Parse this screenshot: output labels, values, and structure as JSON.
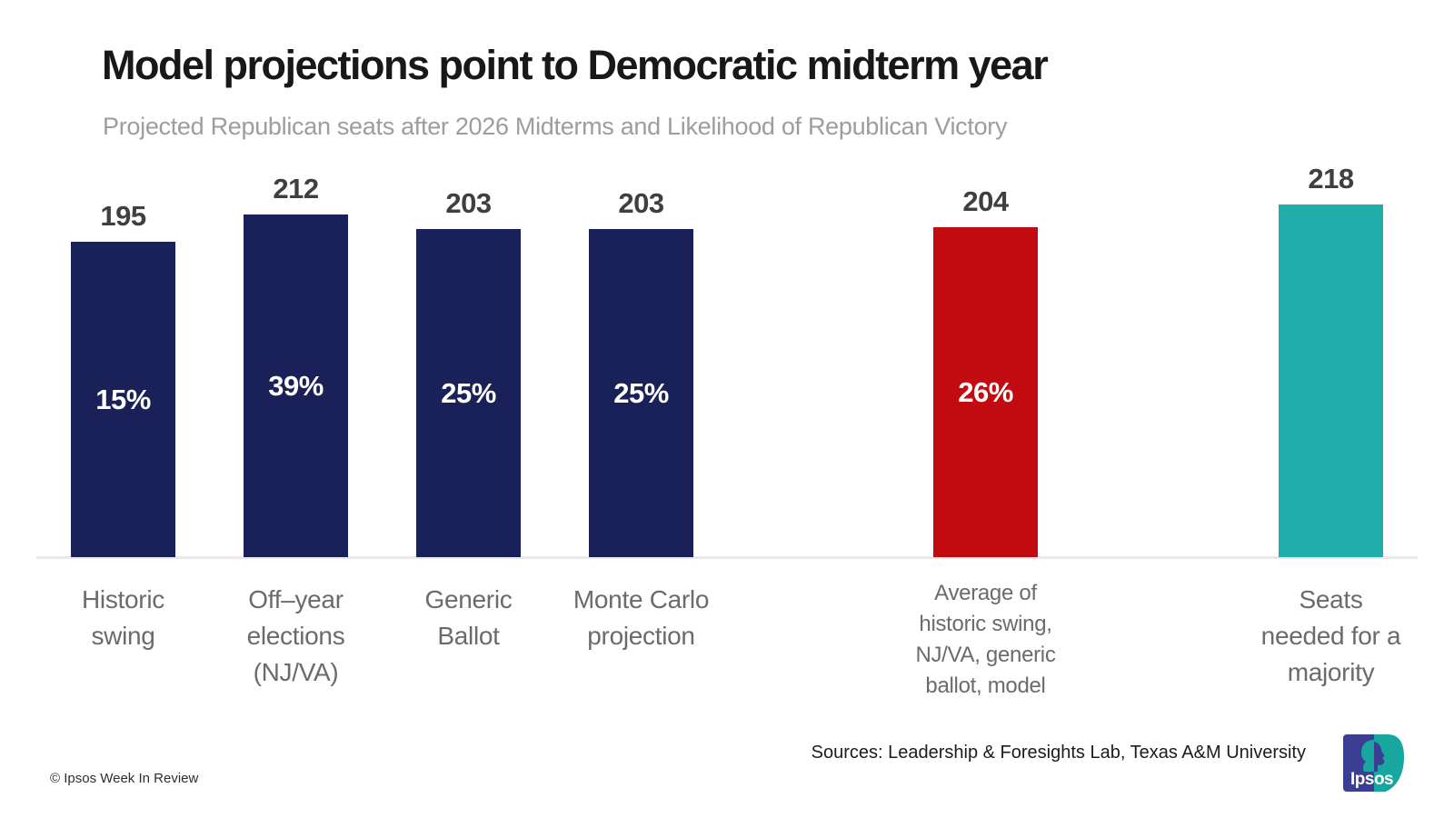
{
  "header": {
    "title": "Model projections point to Democratic midterm year",
    "subtitle": "Projected Republican seats after 2026 Midterms and Likelihood of Republican Victory"
  },
  "chart_data": {
    "type": "bar",
    "title": "Model projections point to Democratic midterm year",
    "subtitle": "Projected Republican seats after 2026 Midterms and Likelihood of Republican Victory",
    "value_meaning": "Projected Republican seats after 2026 Midterms",
    "inner_label_meaning": "Likelihood of Republican Victory",
    "ylim": [
      0,
      243
    ],
    "grid": false,
    "value_axis_visible": false,
    "bars": [
      {
        "category": "Historic swing",
        "category_lines": [
          "Historic",
          "swing"
        ],
        "value": 195,
        "likelihood_pct": "15%",
        "color": "#1a2158",
        "color_name": "navy",
        "label_style": "regular"
      },
      {
        "category": "Off-year elections (NJ/VA)",
        "category_lines": [
          "Off–year",
          "elections",
          "(NJ/VA)"
        ],
        "value": 212,
        "likelihood_pct": "39%",
        "color": "#1a2158",
        "color_name": "navy",
        "label_style": "regular"
      },
      {
        "category": "Generic Ballot",
        "category_lines": [
          "Generic",
          "Ballot"
        ],
        "value": 203,
        "likelihood_pct": "25%",
        "color": "#1a2158",
        "color_name": "navy",
        "label_style": "regular"
      },
      {
        "category": "Monte Carlo projection",
        "category_lines": [
          "Monte Carlo",
          "projection"
        ],
        "value": 203,
        "likelihood_pct": "25%",
        "color": "#1a2158",
        "color_name": "navy",
        "label_style": "regular"
      },
      {
        "category": "Average of historic swing, NJ/VA, generic ballot, model",
        "category_lines": [
          "Average of",
          "historic swing,",
          "NJ/VA, generic",
          "ballot, model"
        ],
        "value": 204,
        "likelihood_pct": "26%",
        "color": "#c20b10",
        "color_name": "red",
        "label_style": "small"
      },
      {
        "category": "Seats needed for a majority",
        "category_lines": [
          "Seats",
          "needed for a",
          "majority"
        ],
        "value": 218,
        "likelihood_pct": null,
        "color": "#21ada9",
        "color_name": "teal",
        "label_style": "regular"
      }
    ]
  },
  "colors": {
    "navy": "#1a2158",
    "red": "#c20b10",
    "teal": "#21ada9",
    "value_label": "#3f3f3f",
    "axis_label": "#6b6b6b",
    "subtitle": "#9d9d9d",
    "baseline": "#e9e9e9",
    "logo_blue": "#3b3e92",
    "logo_teal": "#17a79e"
  },
  "footer": {
    "copyright": "© Ipsos Week In Review",
    "sources": "Sources: Leadership & Foresights Lab, Texas A&M University",
    "logo_text": "Ipsos"
  }
}
